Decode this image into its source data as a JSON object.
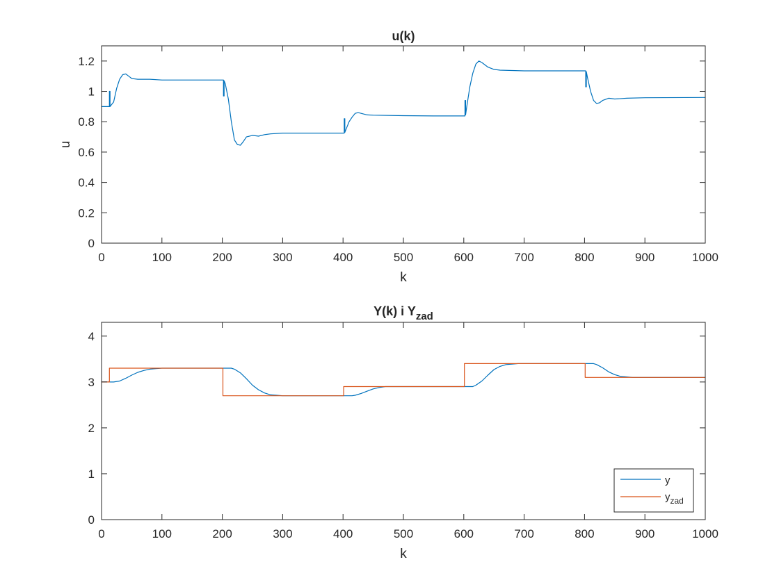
{
  "chart_data": [
    {
      "type": "line",
      "title": "u(k)",
      "xlabel": "k",
      "ylabel": "u",
      "xlim": [
        0,
        1000
      ],
      "ylim": [
        0,
        1.3
      ],
      "xticks": [
        "0",
        "100",
        "200",
        "300",
        "400",
        "500",
        "600",
        "700",
        "800",
        "900",
        "1000"
      ],
      "yticks": [
        "0",
        "0.2",
        "0.4",
        "0.6",
        "0.8",
        "1",
        "1.2"
      ],
      "grid": false,
      "series": [
        {
          "color": "#0072BD",
          "x": [
            0,
            13,
            13,
            14,
            14,
            20,
            25,
            30,
            35,
            40,
            45,
            50,
            60,
            80,
            100,
            150,
            200,
            202,
            202,
            203,
            203,
            205,
            210,
            215,
            220,
            225,
            230,
            235,
            240,
            250,
            260,
            270,
            280,
            300,
            350,
            400,
            402,
            402,
            403,
            403,
            405,
            410,
            415,
            420,
            425,
            430,
            440,
            450,
            500,
            550,
            600,
            602,
            602,
            603,
            603,
            605,
            610,
            615,
            620,
            625,
            630,
            640,
            650,
            660,
            700,
            750,
            800,
            802,
            802,
            803,
            803,
            805,
            810,
            815,
            820,
            825,
            830,
            840,
            850,
            870,
            900,
            1000
          ],
          "y": [
            0.9,
            0.9,
            1.0,
            1.0,
            0.9,
            0.93,
            1.02,
            1.08,
            1.11,
            1.115,
            1.1,
            1.085,
            1.08,
            1.08,
            1.075,
            1.075,
            1.075,
            1.075,
            0.97,
            0.97,
            1.07,
            1.05,
            0.95,
            0.8,
            0.68,
            0.65,
            0.645,
            0.67,
            0.7,
            0.71,
            0.705,
            0.715,
            0.72,
            0.725,
            0.725,
            0.725,
            0.725,
            0.82,
            0.82,
            0.73,
            0.75,
            0.8,
            0.83,
            0.855,
            0.86,
            0.855,
            0.845,
            0.843,
            0.84,
            0.838,
            0.838,
            0.838,
            0.94,
            0.94,
            0.845,
            0.9,
            1.03,
            1.12,
            1.18,
            1.2,
            1.19,
            1.16,
            1.145,
            1.14,
            1.135,
            1.135,
            1.135,
            1.135,
            1.03,
            1.03,
            1.13,
            1.09,
            1.0,
            0.94,
            0.92,
            0.925,
            0.94,
            0.955,
            0.95,
            0.955,
            0.958,
            0.96
          ]
        }
      ]
    },
    {
      "type": "line",
      "title": "Y(k) i Y",
      "title_subscript": "zad",
      "xlabel": "k",
      "ylabel": "",
      "xlim": [
        0,
        1000
      ],
      "ylim": [
        0,
        4.3
      ],
      "xticks": [
        "0",
        "100",
        "200",
        "300",
        "400",
        "500",
        "600",
        "700",
        "800",
        "900",
        "1000"
      ],
      "yticks": [
        "0",
        "1",
        "2",
        "3",
        "4"
      ],
      "grid": false,
      "legend": {
        "location": "bottom-right",
        "entries": [
          {
            "label": "y",
            "subscript": "",
            "color": "#0072BD"
          },
          {
            "label": "y",
            "subscript": "zad",
            "color": "#D95319"
          }
        ]
      },
      "series": [
        {
          "name": "y",
          "color": "#0072BD",
          "x": [
            0,
            15,
            20,
            30,
            40,
            50,
            60,
            70,
            80,
            90,
            100,
            150,
            200,
            215,
            220,
            230,
            240,
            250,
            260,
            270,
            280,
            290,
            300,
            350,
            400,
            415,
            420,
            430,
            440,
            450,
            460,
            470,
            500,
            600,
            615,
            620,
            630,
            640,
            650,
            660,
            670,
            680,
            690,
            700,
            750,
            800,
            815,
            820,
            830,
            840,
            850,
            860,
            870,
            880,
            1000
          ],
          "y": [
            3.0,
            3.0,
            3.0,
            3.02,
            3.08,
            3.15,
            3.21,
            3.25,
            3.28,
            3.29,
            3.3,
            3.3,
            3.3,
            3.3,
            3.28,
            3.2,
            3.07,
            2.93,
            2.83,
            2.76,
            2.72,
            2.71,
            2.7,
            2.7,
            2.7,
            2.7,
            2.71,
            2.75,
            2.8,
            2.85,
            2.88,
            2.9,
            2.9,
            2.9,
            2.9,
            2.93,
            3.02,
            3.15,
            3.27,
            3.34,
            3.38,
            3.39,
            3.4,
            3.4,
            3.4,
            3.4,
            3.4,
            3.38,
            3.31,
            3.22,
            3.16,
            3.12,
            3.11,
            3.1,
            3.1
          ]
        },
        {
          "name": "y_zad",
          "color": "#D95319",
          "x": [
            0,
            13,
            13,
            201,
            201,
            401,
            401,
            601,
            601,
            801,
            801,
            1000
          ],
          "y": [
            3.0,
            3.0,
            3.3,
            3.3,
            2.7,
            2.7,
            2.9,
            2.9,
            3.4,
            3.4,
            3.1,
            3.1
          ]
        }
      ]
    }
  ]
}
